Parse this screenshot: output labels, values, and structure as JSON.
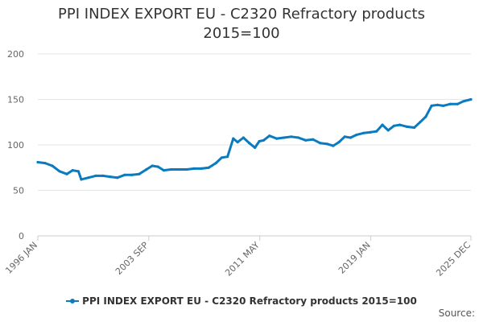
{
  "chart_data": {
    "type": "line",
    "title_line1": "PPI INDEX EXPORT EU - C2320 Refractory products",
    "title_line2": "2015=100",
    "xlabel": "",
    "ylabel": "",
    "ylim": [
      0,
      200
    ],
    "yticks": [
      0,
      50,
      100,
      150,
      200
    ],
    "xticks": [
      {
        "label": "1996 JAN",
        "t": 1996.0
      },
      {
        "label": "2003 SEP",
        "t": 2003.667
      },
      {
        "label": "2011 MAY",
        "t": 2011.333
      },
      {
        "label": "2019 JAN",
        "t": 2019.0
      },
      {
        "label": "2025 DEC",
        "t": 2025.917
      }
    ],
    "xlim": [
      1996.0,
      2025.917
    ],
    "grid": true,
    "legend_position": "bottom",
    "series": [
      {
        "name": "PPI INDEX EXPORT EU - C2320 Refractory products 2015=100",
        "color": "#0b7bbf",
        "points": [
          [
            1996.0,
            81
          ],
          [
            1996.5,
            80
          ],
          [
            1997.0,
            77
          ],
          [
            1997.5,
            71
          ],
          [
            1998.0,
            68
          ],
          [
            1998.4,
            72
          ],
          [
            1998.8,
            71
          ],
          [
            1999.0,
            62
          ],
          [
            1999.5,
            64
          ],
          [
            2000.0,
            66
          ],
          [
            2000.5,
            66
          ],
          [
            2001.0,
            65
          ],
          [
            2001.5,
            64
          ],
          [
            2002.0,
            67
          ],
          [
            2002.5,
            67
          ],
          [
            2003.0,
            68
          ],
          [
            2003.5,
            73
          ],
          [
            2003.9,
            77
          ],
          [
            2004.3,
            76
          ],
          [
            2004.7,
            72
          ],
          [
            2005.2,
            73
          ],
          [
            2005.8,
            73
          ],
          [
            2006.3,
            73
          ],
          [
            2006.8,
            74
          ],
          [
            2007.3,
            74
          ],
          [
            2007.8,
            75
          ],
          [
            2008.3,
            80
          ],
          [
            2008.7,
            86
          ],
          [
            2009.1,
            87
          ],
          [
            2009.5,
            107
          ],
          [
            2009.8,
            103
          ],
          [
            2010.2,
            108
          ],
          [
            2010.6,
            102
          ],
          [
            2011.0,
            97
          ],
          [
            2011.3,
            104
          ],
          [
            2011.6,
            105
          ],
          [
            2012.0,
            110
          ],
          [
            2012.5,
            107
          ],
          [
            2013.0,
            108
          ],
          [
            2013.5,
            109
          ],
          [
            2014.0,
            108
          ],
          [
            2014.5,
            105
          ],
          [
            2015.0,
            106
          ],
          [
            2015.5,
            102
          ],
          [
            2016.0,
            101
          ],
          [
            2016.4,
            99
          ],
          [
            2016.8,
            103
          ],
          [
            2017.2,
            109
          ],
          [
            2017.6,
            108
          ],
          [
            2018.0,
            111
          ],
          [
            2018.5,
            113
          ],
          [
            2019.0,
            114
          ],
          [
            2019.4,
            115
          ],
          [
            2019.8,
            122
          ],
          [
            2020.2,
            116
          ],
          [
            2020.6,
            121
          ],
          [
            2021.0,
            122
          ],
          [
            2021.5,
            120
          ],
          [
            2022.0,
            119
          ],
          [
            2022.4,
            125
          ],
          [
            2022.8,
            131
          ],
          [
            2023.2,
            143
          ],
          [
            2023.6,
            144
          ],
          [
            2024.0,
            143
          ],
          [
            2024.5,
            145
          ],
          [
            2025.0,
            145
          ],
          [
            2025.4,
            148
          ],
          [
            2025.917,
            150
          ]
        ]
      }
    ]
  },
  "legend": {
    "label": "PPI INDEX EXPORT EU - C2320 Refractory products 2015=100"
  },
  "source": {
    "label": "Source:"
  }
}
